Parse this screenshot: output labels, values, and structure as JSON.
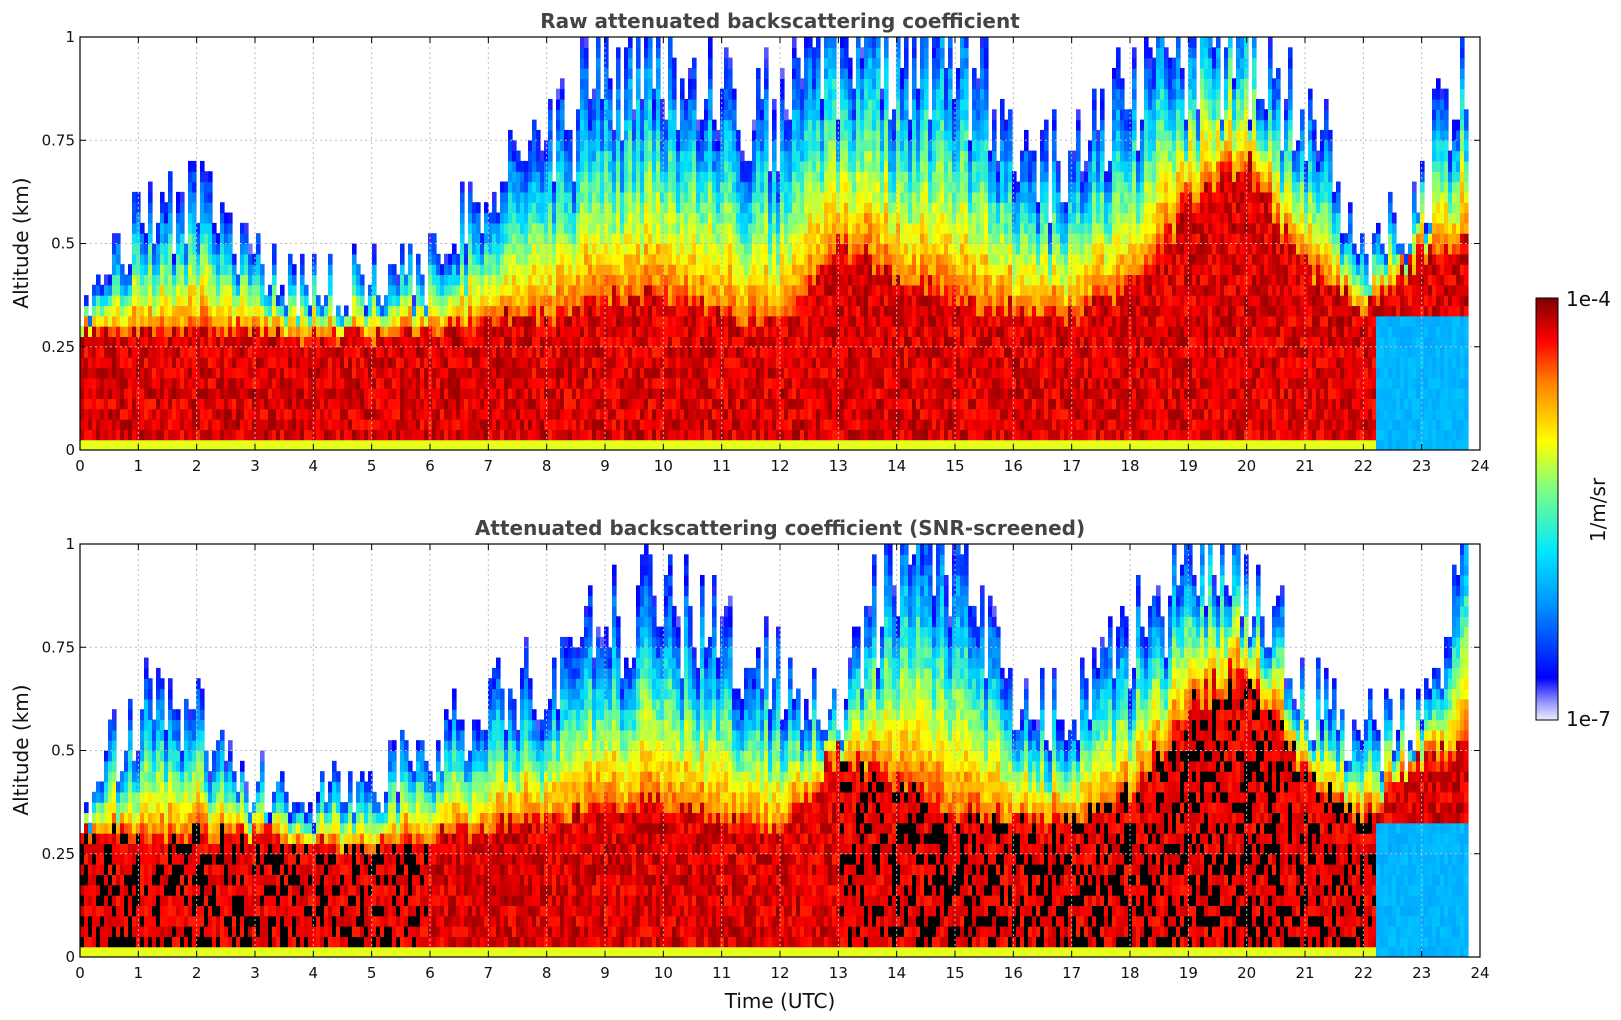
{
  "chart_data": [
    {
      "type": "heatmap",
      "title": "Raw attenuated backscattering coefficient",
      "xlabel": "",
      "ylabel": "Altitude (km)",
      "xlim": [
        0,
        24
      ],
      "ylim": [
        0,
        1
      ],
      "x_ticks": [
        "0",
        "1",
        "2",
        "3",
        "4",
        "5",
        "6",
        "7",
        "8",
        "9",
        "10",
        "11",
        "12",
        "13",
        "14",
        "15",
        "16",
        "17",
        "18",
        "19",
        "20",
        "21",
        "22",
        "23",
        "24"
      ],
      "y_ticks": [
        "0",
        "0.25",
        "0.5",
        "0.75",
        "1"
      ],
      "grid": true,
      "series": [
        {
          "x_hours": [
            0,
            1,
            2,
            3,
            4,
            5,
            6,
            7,
            8,
            9,
            10,
            11,
            12,
            13,
            14,
            15,
            16,
            17,
            18,
            19,
            20,
            21,
            22,
            23,
            23.8
          ],
          "strong_layer_top_km": [
            0.29,
            0.29,
            0.29,
            0.29,
            0.28,
            0.28,
            0.29,
            0.31,
            0.33,
            0.36,
            0.38,
            0.33,
            0.31,
            0.5,
            0.42,
            0.36,
            0.34,
            0.33,
            0.4,
            0.6,
            0.7,
            0.44,
            0.34,
            0.48,
            0.5
          ],
          "signal_top_km": [
            0.35,
            0.55,
            0.6,
            0.45,
            0.4,
            0.42,
            0.45,
            0.65,
            0.72,
            0.9,
            0.95,
            0.85,
            0.8,
            1.0,
            1.0,
            1.0,
            0.7,
            0.68,
            0.9,
            1.0,
            1.0,
            0.85,
            0.45,
            0.62,
            1.0
          ]
        }
      ]
    },
    {
      "type": "heatmap",
      "title": "Attenuated backscattering coefficient (SNR-screened)",
      "xlabel": "Time (UTC)",
      "ylabel": "Altitude (km)",
      "xlim": [
        0,
        24
      ],
      "ylim": [
        0,
        1
      ],
      "x_ticks": [
        "0",
        "1",
        "2",
        "3",
        "4",
        "5",
        "6",
        "7",
        "8",
        "9",
        "10",
        "11",
        "12",
        "13",
        "14",
        "15",
        "16",
        "17",
        "18",
        "19",
        "20",
        "21",
        "22",
        "23",
        "24"
      ],
      "y_ticks": [
        "0",
        "0.25",
        "0.5",
        "0.75",
        "1"
      ],
      "grid": true,
      "series": [
        {
          "x_hours": [
            0,
            1,
            2,
            3,
            4,
            5,
            6,
            7,
            8,
            9,
            10,
            11,
            12,
            13,
            14,
            15,
            16,
            17,
            18,
            19,
            20,
            21,
            22,
            23,
            23.8
          ],
          "strong_layer_top_km": [
            0.3,
            0.3,
            0.3,
            0.3,
            0.27,
            0.27,
            0.3,
            0.31,
            0.33,
            0.36,
            0.38,
            0.33,
            0.31,
            0.5,
            0.42,
            0.36,
            0.34,
            0.33,
            0.4,
            0.6,
            0.7,
            0.44,
            0.34,
            0.48,
            0.5
          ],
          "signal_top_km": [
            0.34,
            0.62,
            0.58,
            0.42,
            0.38,
            0.44,
            0.5,
            0.62,
            0.68,
            0.82,
            0.88,
            0.75,
            0.68,
            0.55,
            1.0,
            1.0,
            0.6,
            0.58,
            0.75,
            1.0,
            1.0,
            0.62,
            0.55,
            0.58,
            1.0
          ]
        }
      ]
    }
  ],
  "colorbar": {
    "label": "1/m/sr",
    "max_label": "1e-4",
    "min_label": "1e-7",
    "colormap": [
      "#eeeeff",
      "#0000ff",
      "#0080ff",
      "#00e0ff",
      "#80ff80",
      "#ffff00",
      "#ff8000",
      "#ff0000",
      "#800000"
    ]
  }
}
